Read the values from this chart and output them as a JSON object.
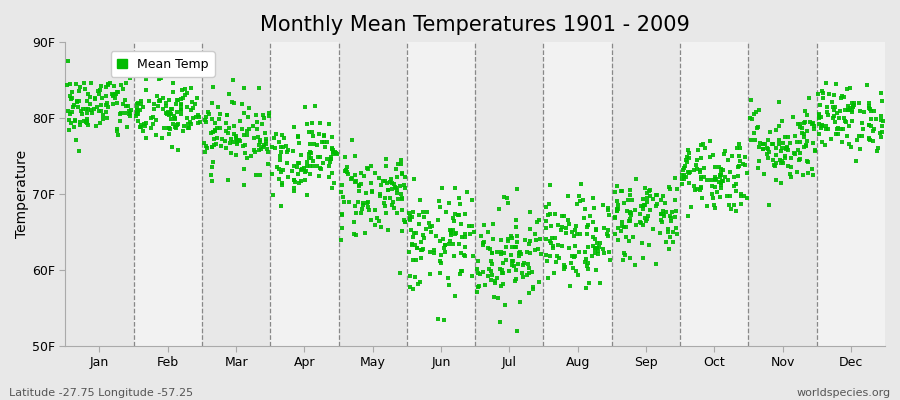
{
  "title": "Monthly Mean Temperatures 1901 - 2009",
  "ylabel": "Temperature",
  "ylim": [
    50,
    90
  ],
  "yticks": [
    50,
    60,
    70,
    80,
    90
  ],
  "ytick_labels": [
    "50F",
    "60F",
    "70F",
    "80F",
    "90F"
  ],
  "months": [
    "Jan",
    "Feb",
    "Mar",
    "Apr",
    "May",
    "Jun",
    "Jul",
    "Aug",
    "Sep",
    "Oct",
    "Nov",
    "Dec"
  ],
  "dot_color": "#00bb00",
  "bg_color": "#e8e8e8",
  "bg_band_color": "#f4f4f4",
  "white_band_color": "#f4f4f4",
  "gray_band_color": "#e0e0e0",
  "legend_label": "Mean Temp",
  "bottom_left": "Latitude -27.75 Longitude -57.25",
  "bottom_right": "worldspecies.org",
  "n_years": 109,
  "monthly_means": [
    81.5,
    80.5,
    78.0,
    75.0,
    70.0,
    63.5,
    62.0,
    63.5,
    67.0,
    72.5,
    76.5,
    80.0
  ],
  "monthly_stds": [
    2.2,
    2.2,
    2.5,
    2.5,
    3.0,
    3.5,
    3.5,
    3.0,
    2.8,
    2.5,
    2.8,
    2.2
  ],
  "title_fontsize": 15,
  "axis_fontsize": 10,
  "tick_fontsize": 9,
  "annotation_fontsize": 8
}
